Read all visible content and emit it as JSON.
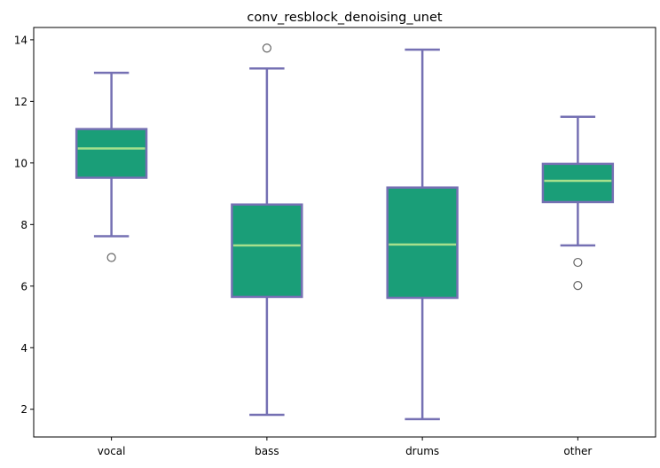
{
  "chart_data": {
    "type": "box",
    "title": "conv_resblock_denoising_unet",
    "xlabel": "",
    "ylabel": "",
    "categories": [
      "vocal",
      "bass",
      "drums",
      "other"
    ],
    "boxes": [
      {
        "name": "vocal",
        "whisker_low": 7.62,
        "q1": 9.52,
        "median": 10.47,
        "q3": 11.1,
        "whisker_high": 12.93,
        "outliers": [
          6.93
        ]
      },
      {
        "name": "bass",
        "whisker_low": 1.82,
        "q1": 5.65,
        "median": 7.32,
        "q3": 8.65,
        "whisker_high": 13.07,
        "outliers": [
          13.73
        ]
      },
      {
        "name": "drums",
        "whisker_low": 1.68,
        "q1": 5.62,
        "median": 7.35,
        "q3": 9.2,
        "whisker_high": 13.68,
        "outliers": []
      },
      {
        "name": "other",
        "whisker_low": 7.32,
        "q1": 8.73,
        "median": 9.42,
        "q3": 9.97,
        "whisker_high": 11.5,
        "outliers": [
          6.77,
          6.02
        ]
      }
    ],
    "ylim": [
      1.1,
      14.4
    ],
    "yticks": [
      2,
      4,
      6,
      8,
      10,
      12,
      14
    ],
    "grid": false,
    "colors": {
      "box_fill": "#1a9e78",
      "box_edge": "#7570b3",
      "median": "#a6e08c",
      "whisker": "#7570b3",
      "outlier": "#666666",
      "axis": "#000000"
    }
  }
}
